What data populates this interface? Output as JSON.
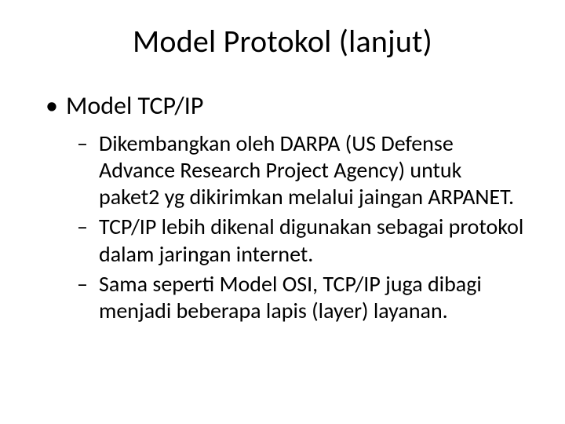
{
  "slide": {
    "title": "Model Protokol (lanjut)",
    "background_color": "#ffffff",
    "text_color": "#000000",
    "title_fontsize": 40,
    "bullet_l1_fontsize": 32,
    "bullet_l2_fontsize": 28,
    "font_family": "Calibri",
    "bullets": {
      "l1": {
        "text": "Model TCP/IP",
        "marker": "•"
      },
      "l2": [
        {
          "text": "Dikembangkan oleh DARPA (US Defense Advance Research Project Agency) untuk paket2 yg dikirimkan melalui jaingan ARPANET.",
          "marker": "–"
        },
        {
          "text": "TCP/IP lebih dikenal digunakan sebagai protokol dalam jaringan internet.",
          "marker": "–"
        },
        {
          "text": "Sama seperti Model OSI, TCP/IP juga dibagi menjadi beberapa lapis (layer) layanan.",
          "marker": "–"
        }
      ]
    }
  }
}
